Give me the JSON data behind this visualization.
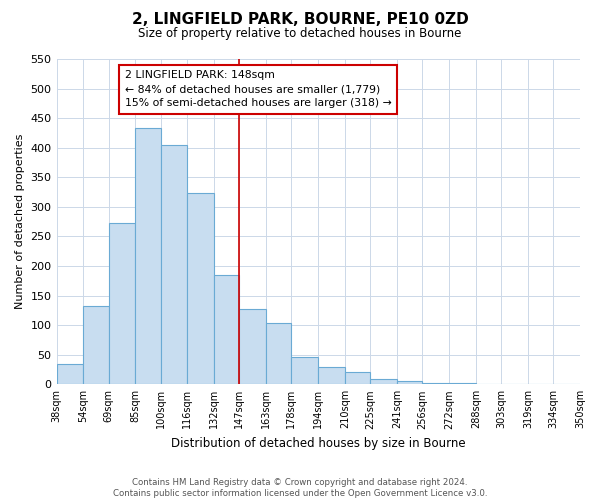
{
  "title": "2, LINGFIELD PARK, BOURNE, PE10 0ZD",
  "subtitle": "Size of property relative to detached houses in Bourne",
  "xlabel": "Distribution of detached houses by size in Bourne",
  "ylabel": "Number of detached properties",
  "bar_values": [
    35,
    133,
    272,
    433,
    405,
    323,
    184,
    128,
    104,
    46,
    30,
    20,
    9,
    6,
    3,
    2,
    1,
    1
  ],
  "bin_edges": [
    38,
    54,
    69,
    85,
    100,
    116,
    132,
    147,
    163,
    178,
    194,
    210,
    225,
    241,
    256,
    272,
    288,
    303,
    350
  ],
  "bin_labels": [
    "38sqm",
    "54sqm",
    "69sqm",
    "85sqm",
    "100sqm",
    "116sqm",
    "132sqm",
    "147sqm",
    "163sqm",
    "178sqm",
    "194sqm",
    "210sqm",
    "225sqm",
    "241sqm",
    "256sqm",
    "272sqm",
    "288sqm",
    "303sqm",
    "319sqm",
    "334sqm",
    "350sqm"
  ],
  "xtick_positions": [
    38,
    54,
    69,
    85,
    100,
    116,
    132,
    147,
    163,
    178,
    194,
    210,
    225,
    241,
    256,
    272,
    288,
    303,
    319,
    334,
    350
  ],
  "bar_color": "#c8ddf0",
  "bar_edge_color": "#6aaad4",
  "vline_x": 147,
  "vline_color": "#cc0000",
  "annotation_title": "2 LINGFIELD PARK: 148sqm",
  "annotation_line1": "← 84% of detached houses are smaller (1,779)",
  "annotation_line2": "15% of semi-detached houses are larger (318) →",
  "annotation_box_color": "#ffffff",
  "annotation_box_edge": "#cc0000",
  "ylim": [
    0,
    550
  ],
  "yticks": [
    0,
    50,
    100,
    150,
    200,
    250,
    300,
    350,
    400,
    450,
    500,
    550
  ],
  "footer_line1": "Contains HM Land Registry data © Crown copyright and database right 2024.",
  "footer_line2": "Contains public sector information licensed under the Open Government Licence v3.0.",
  "bg_color": "#ffffff",
  "grid_color": "#ccd8e8"
}
